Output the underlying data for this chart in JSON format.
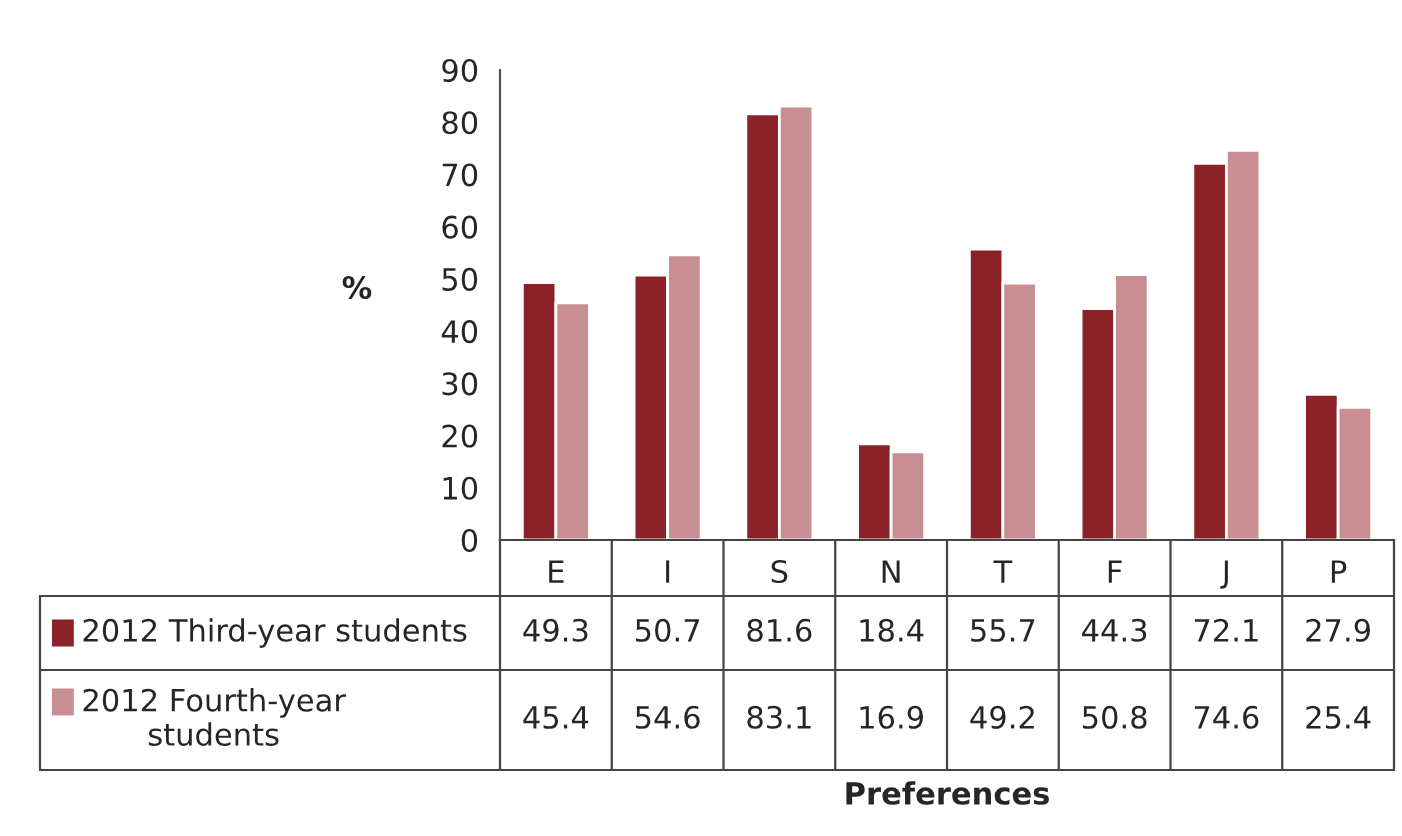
{
  "chart_data": {
    "type": "bar",
    "annotations": [
      "Preferences"
    ],
    "ylabel": "%",
    "categories": [
      "E",
      "I",
      "S",
      "N",
      "T",
      "F",
      "J",
      "P"
    ],
    "series": [
      {
        "name": "2012 Third-year students",
        "color": "#8b2228",
        "values": [
          49.3,
          50.7,
          81.6,
          18.4,
          55.7,
          44.3,
          72.1,
          27.9
        ]
      },
      {
        "name": "2012 Fourth-year students",
        "color": "#c98e92",
        "values": [
          45.4,
          54.6,
          83.1,
          16.9,
          49.2,
          50.8,
          74.6,
          25.4
        ]
      }
    ],
    "ylim": [
      0,
      90
    ],
    "yticks": [
      0,
      10,
      20,
      30,
      40,
      50,
      60,
      70,
      80,
      90
    ],
    "grid": false,
    "legend": "bottom left",
    "data_labels": true
  }
}
